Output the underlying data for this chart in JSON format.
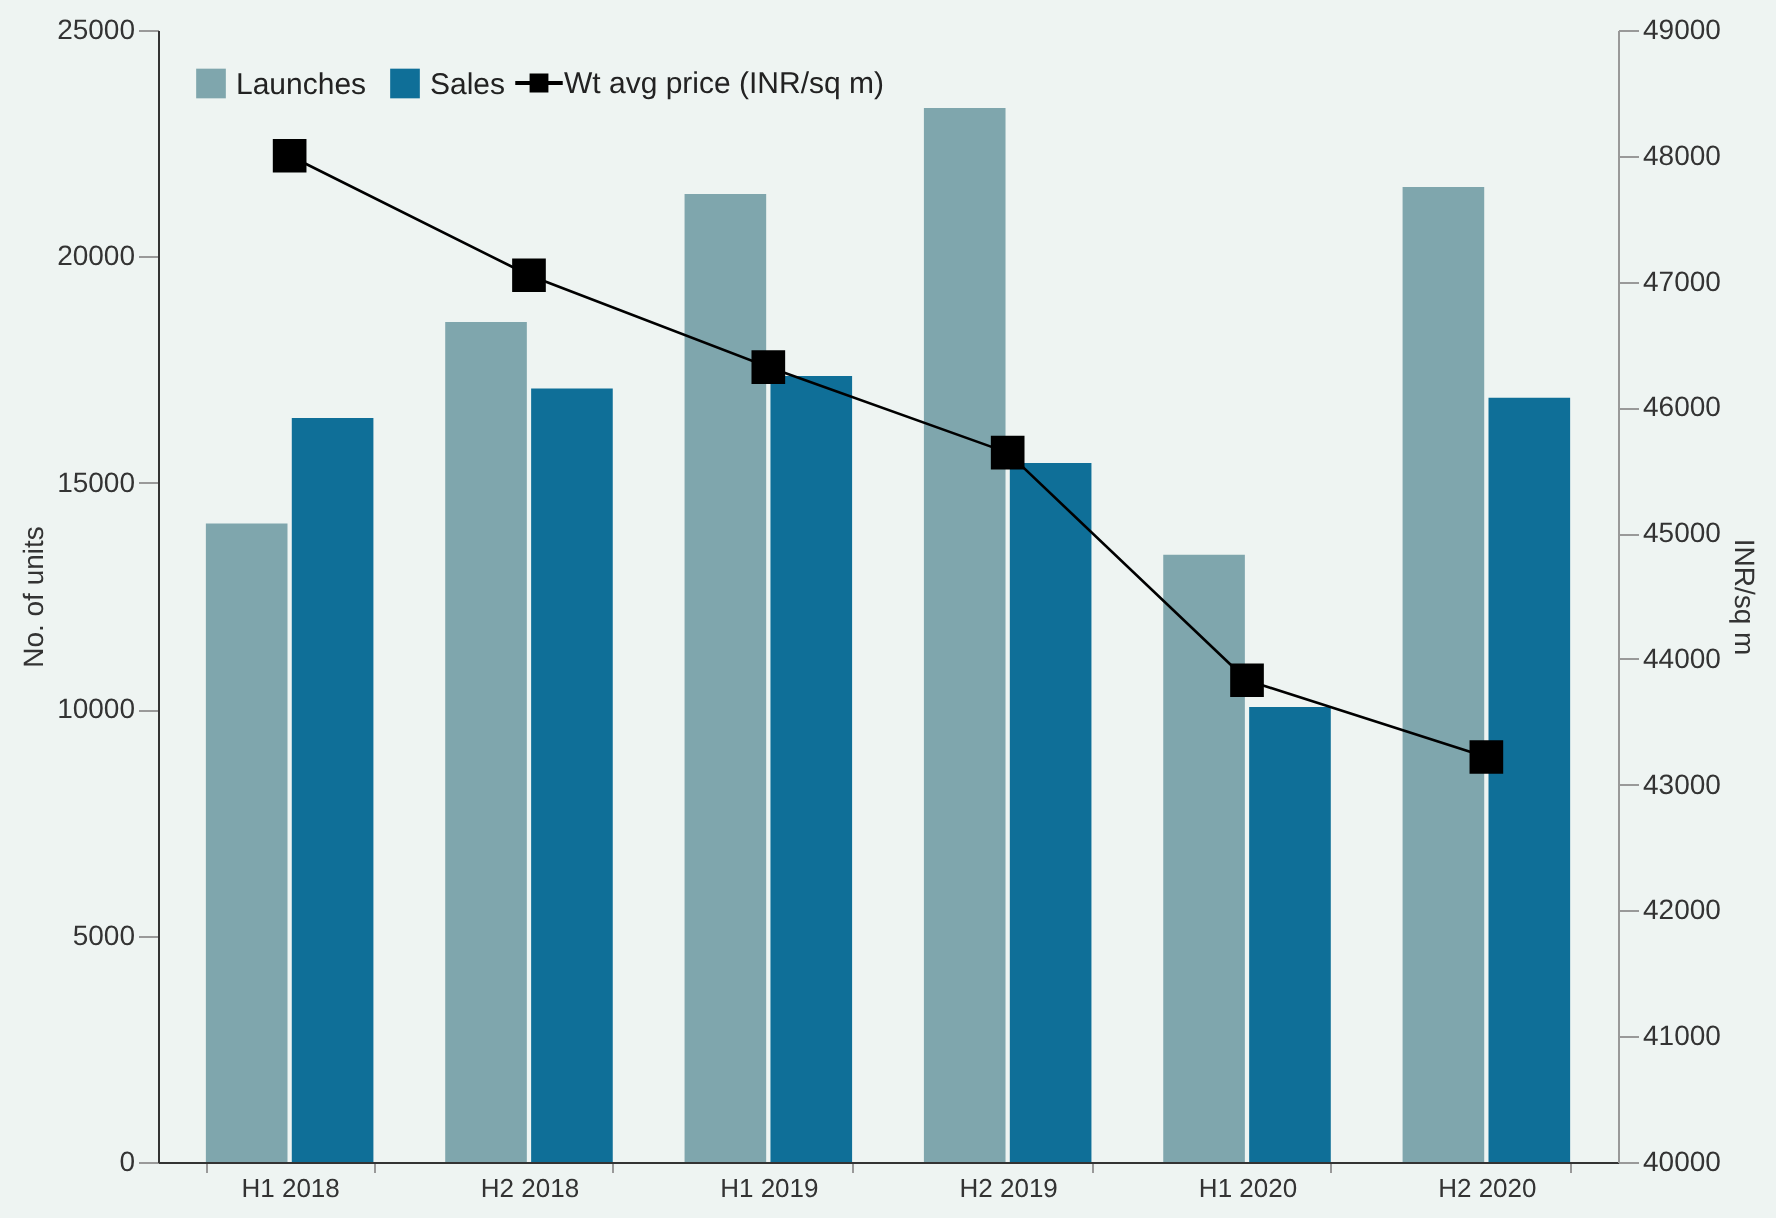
{
  "chart_data": {
    "type": "bar",
    "categories": [
      "H1 2018",
      "H2 2018",
      "H1 2019",
      "H2 2019",
      "H1 2020",
      "H2 2020"
    ],
    "ylabel": "No. of units",
    "y2label": "INR/sq m",
    "ylim": [
      0,
      25000
    ],
    "yticks": [
      0,
      5000,
      10000,
      15000,
      20000,
      25000
    ],
    "y2lim": [
      40000,
      49000
    ],
    "y2ticks": [
      40000,
      41000,
      42000,
      43000,
      44000,
      45000,
      46000,
      47000,
      48000,
      49000
    ],
    "series": [
      {
        "name": "Launches",
        "color": "#7fa6ad",
        "values": [
          14100,
          18550,
          21380,
          23280,
          13410,
          21530
        ]
      },
      {
        "name": "Sales",
        "color": "#0f6f98",
        "values": [
          16430,
          17080,
          17360,
          15440,
          10050,
          16880
        ]
      },
      {
        "name": "Wt avg price (INR/sq m)",
        "type": "line",
        "axis": "y2",
        "color": "#000000",
        "marker": "square",
        "values": [
          48000,
          47050,
          46320,
          45640,
          43830,
          43220
        ]
      }
    ],
    "legend": "top left",
    "grid": false
  }
}
